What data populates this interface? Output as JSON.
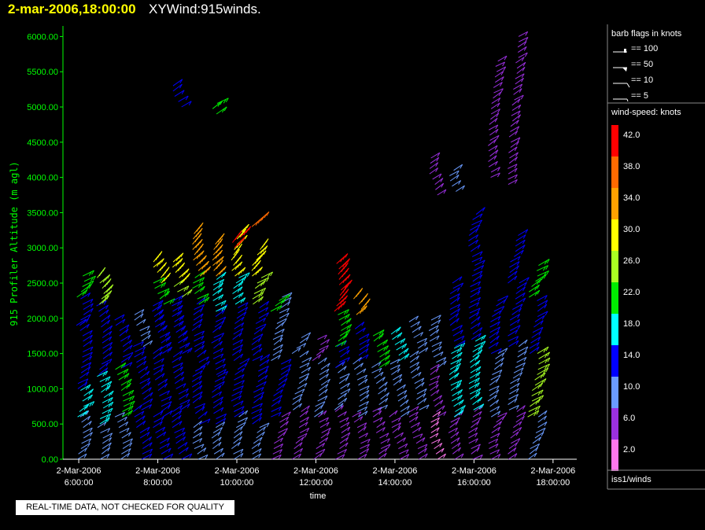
{
  "header": {
    "date": "2-mar-2006,18:00:00",
    "title": "XYWind:915winds."
  },
  "notice": "REAL-TIME DATA, NOT CHECKED FOR QUALITY",
  "chart_data": {
    "type": "wind-barb-time-height",
    "ylabel": "915 Profiler Altitude (m agl)",
    "xlabel": "time",
    "ylim": [
      0,
      6150
    ],
    "yticks": [
      "0.00",
      "500.00",
      "1000.00",
      "1500.00",
      "2000.00",
      "2500.00",
      "3000.00",
      "3500.00",
      "4000.00",
      "4500.00",
      "5000.00",
      "5500.00",
      "6000.00"
    ],
    "ytick_values": [
      0,
      500,
      1000,
      1500,
      2000,
      2500,
      3000,
      3500,
      4000,
      4500,
      5000,
      5500,
      6000
    ],
    "xlim_hours": [
      5.6,
      18.6
    ],
    "xticks": [
      {
        "hour": 6,
        "date": "2-Mar-2006",
        "time": "6:00:00"
      },
      {
        "hour": 8,
        "date": "2-Mar-2006",
        "time": "8:00:00"
      },
      {
        "hour": 10,
        "date": "2-Mar-2006",
        "time": "10:00:00"
      },
      {
        "hour": 12,
        "date": "2-Mar-2006",
        "time": "12:00:00"
      },
      {
        "hour": 14,
        "date": "2-Mar-2006",
        "time": "14:00:00"
      },
      {
        "hour": 16,
        "date": "2-Mar-2006",
        "time": "16:00:00"
      },
      {
        "hour": 18,
        "date": "2-Mar-2006",
        "time": "18:00:00"
      }
    ],
    "axis_color": "#00ff00",
    "profiles": [
      {
        "hour": 6.0,
        "layers": [
          [
            0,
            600,
            8
          ],
          [
            600,
            1000,
            16
          ],
          [
            1000,
            1900,
            12
          ],
          [
            1900,
            2300,
            14
          ],
          [
            2300,
            2650,
            22
          ]
        ]
      },
      {
        "hour": 6.5,
        "layers": [
          [
            0,
            500,
            8
          ],
          [
            500,
            1200,
            16
          ],
          [
            1200,
            2200,
            13
          ],
          [
            2200,
            2600,
            26
          ]
        ]
      },
      {
        "hour": 7.0,
        "layers": [
          [
            0,
            600,
            10
          ],
          [
            600,
            1300,
            20
          ],
          [
            1300,
            2000,
            12
          ]
        ]
      },
      {
        "hour": 7.5,
        "layers": [
          [
            0,
            700,
            12
          ],
          [
            700,
            1600,
            14
          ],
          [
            1600,
            2050,
            10
          ]
        ]
      },
      {
        "hour": 8.0,
        "layers": [
          [
            0,
            600,
            12
          ],
          [
            600,
            1500,
            14
          ],
          [
            1500,
            2200,
            15
          ],
          [
            2200,
            2500,
            22
          ],
          [
            2500,
            2800,
            30
          ]
        ]
      },
      {
        "hour": 8.5,
        "layers": [
          [
            0,
            700,
            14
          ],
          [
            700,
            1500,
            12
          ],
          [
            1500,
            2300,
            15
          ],
          [
            2300,
            2500,
            24
          ],
          [
            2500,
            2800,
            28
          ],
          [
            5000,
            5350,
            14
          ]
        ]
      },
      {
        "hour": 9.0,
        "layers": [
          [
            0,
            500,
            8
          ],
          [
            500,
            1300,
            14
          ],
          [
            1300,
            2200,
            13
          ],
          [
            2200,
            2600,
            22
          ],
          [
            2600,
            3250,
            34
          ]
        ]
      },
      {
        "hour": 9.5,
        "layers": [
          [
            0,
            500,
            8
          ],
          [
            500,
            1200,
            14
          ],
          [
            1200,
            2100,
            12
          ],
          [
            2100,
            2600,
            18
          ],
          [
            2600,
            3100,
            33
          ],
          [
            4900,
            5050,
            22
          ]
        ]
      },
      {
        "hour": 10.0,
        "layers": [
          [
            0,
            600,
            10
          ],
          [
            600,
            1400,
            14
          ],
          [
            1400,
            2200,
            13
          ],
          [
            2200,
            2600,
            18
          ],
          [
            2600,
            3200,
            30
          ],
          [
            3000,
            3150,
            40
          ]
        ]
      },
      {
        "hour": 10.5,
        "layers": [
          [
            0,
            500,
            8
          ],
          [
            500,
            1400,
            14
          ],
          [
            1400,
            2200,
            13
          ],
          [
            2200,
            2600,
            24
          ],
          [
            2600,
            3000,
            30
          ],
          [
            3300,
            3400,
            36
          ]
        ]
      },
      {
        "hour": 11.0,
        "layers": [
          [
            0,
            600,
            6
          ],
          [
            600,
            1400,
            12
          ],
          [
            1400,
            2300,
            10
          ],
          [
            2100,
            2300,
            22
          ]
        ]
      },
      {
        "hour": 11.5,
        "layers": [
          [
            0,
            700,
            6
          ],
          [
            700,
            1500,
            10
          ],
          [
            1500,
            1750,
            8
          ]
        ]
      },
      {
        "hour": 12.0,
        "layers": [
          [
            0,
            600,
            6
          ],
          [
            600,
            1400,
            10
          ],
          [
            1400,
            1700,
            6
          ]
        ]
      },
      {
        "hour": 12.5,
        "layers": [
          [
            0,
            700,
            6
          ],
          [
            700,
            1300,
            10
          ],
          [
            1300,
            1600,
            14
          ],
          [
            1600,
            2100,
            20
          ],
          [
            2100,
            2800,
            42
          ]
        ]
      },
      {
        "hour": 13.0,
        "layers": [
          [
            0,
            600,
            6
          ],
          [
            600,
            1400,
            10
          ],
          [
            1400,
            1900,
            14
          ],
          [
            2050,
            2300,
            32
          ]
        ]
      },
      {
        "hour": 13.5,
        "layers": [
          [
            0,
            700,
            6
          ],
          [
            700,
            1300,
            10
          ],
          [
            1300,
            1800,
            22
          ]
        ]
      },
      {
        "hour": 14.0,
        "layers": [
          [
            0,
            600,
            6
          ],
          [
            600,
            1400,
            8
          ],
          [
            1400,
            1800,
            18
          ]
        ]
      },
      {
        "hour": 14.5,
        "layers": [
          [
            0,
            700,
            6
          ],
          [
            700,
            1500,
            10
          ],
          [
            1500,
            2000,
            10
          ]
        ]
      },
      {
        "hour": 15.0,
        "layers": [
          [
            0,
            600,
            2
          ],
          [
            600,
            1300,
            6
          ],
          [
            1300,
            2000,
            10
          ],
          [
            3750,
            4300,
            6
          ]
        ]
      },
      {
        "hour": 15.5,
        "layers": [
          [
            0,
            600,
            6
          ],
          [
            600,
            1600,
            18
          ],
          [
            1600,
            2500,
            14
          ],
          [
            3800,
            4100,
            8
          ]
        ]
      },
      {
        "hour": 16.0,
        "layers": [
          [
            0,
            700,
            6
          ],
          [
            700,
            1700,
            18
          ],
          [
            1700,
            2800,
            14
          ],
          [
            2800,
            3500,
            14
          ]
        ]
      },
      {
        "hour": 16.5,
        "layers": [
          [
            0,
            600,
            6
          ],
          [
            600,
            1500,
            10
          ],
          [
            1500,
            2300,
            14
          ],
          [
            4000,
            5700,
            6
          ]
        ]
      },
      {
        "hour": 17.0,
        "layers": [
          [
            0,
            700,
            6
          ],
          [
            700,
            1600,
            10
          ],
          [
            1600,
            2500,
            14
          ],
          [
            2500,
            3200,
            14
          ],
          [
            3900,
            6000,
            6
          ]
        ]
      },
      {
        "hour": 17.5,
        "layers": [
          [
            0,
            600,
            8
          ],
          [
            600,
            1500,
            24
          ],
          [
            1500,
            2300,
            14
          ],
          [
            2300,
            2750,
            22
          ]
        ]
      }
    ]
  },
  "legend": {
    "barb_title": "barb flags in knots",
    "barbs": [
      {
        "label": "== 100",
        "kind": "flag"
      },
      {
        "label": "== 50",
        "kind": "pennant"
      },
      {
        "label": "== 10",
        "kind": "full"
      },
      {
        "label": "== 5",
        "kind": "half"
      }
    ],
    "speed_title": "wind-speed: knots",
    "scale": [
      {
        "label": "42.0",
        "color": "#ff0000"
      },
      {
        "label": "38.0",
        "color": "#ff6a00"
      },
      {
        "label": "34.0",
        "color": "#ffa200"
      },
      {
        "label": "30.0",
        "color": "#ffff00"
      },
      {
        "label": "26.0",
        "color": "#aaff22"
      },
      {
        "label": "22.0",
        "color": "#00ee00"
      },
      {
        "label": "18.0",
        "color": "#00ffff"
      },
      {
        "label": "14.0",
        "color": "#0000ff"
      },
      {
        "label": "10.0",
        "color": "#6a9bff"
      },
      {
        "label": "6.0",
        "color": "#9b30e0"
      },
      {
        "label": "2.0",
        "color": "#ff77ee"
      }
    ],
    "source": "iss1/winds"
  }
}
